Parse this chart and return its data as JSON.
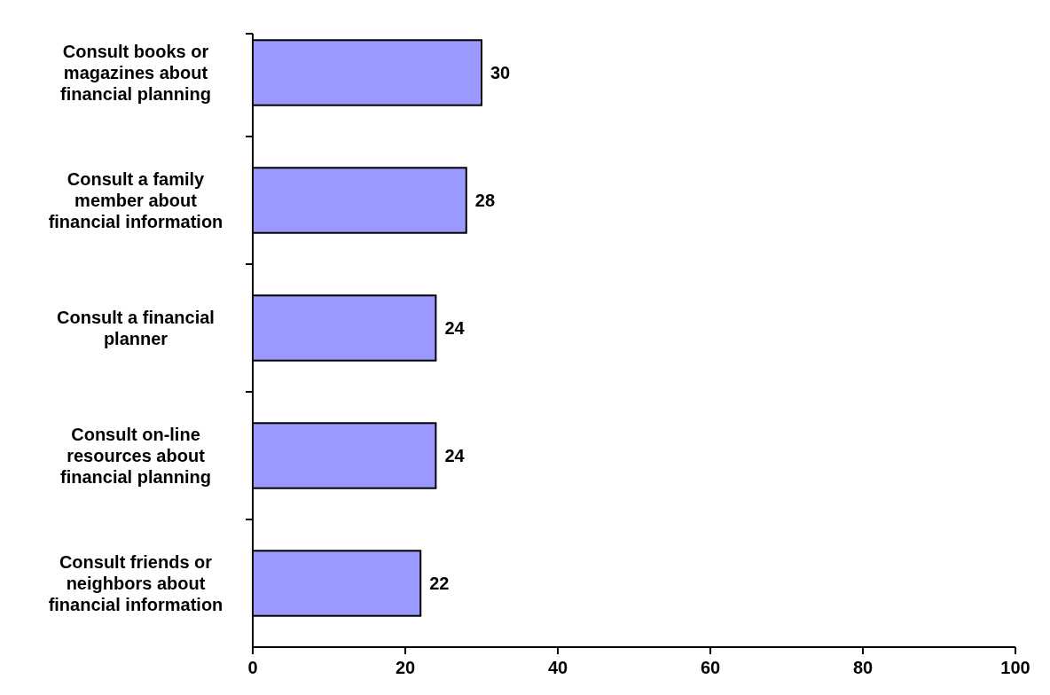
{
  "chart_data": {
    "type": "bar",
    "orientation": "horizontal",
    "categories": [
      "Consult books or magazines about financial planning",
      "Consult a family member about financial information",
      "Consult a financial planner",
      "Consult on-line resources about financial planning",
      "Consult friends or neighbors about financial information"
    ],
    "values": [
      30,
      28,
      24,
      24,
      22
    ],
    "color": "#9999ff",
    "xlim": [
      0,
      100
    ],
    "xticks": [
      0,
      20,
      40,
      60,
      80,
      100
    ],
    "data_labels": true
  }
}
